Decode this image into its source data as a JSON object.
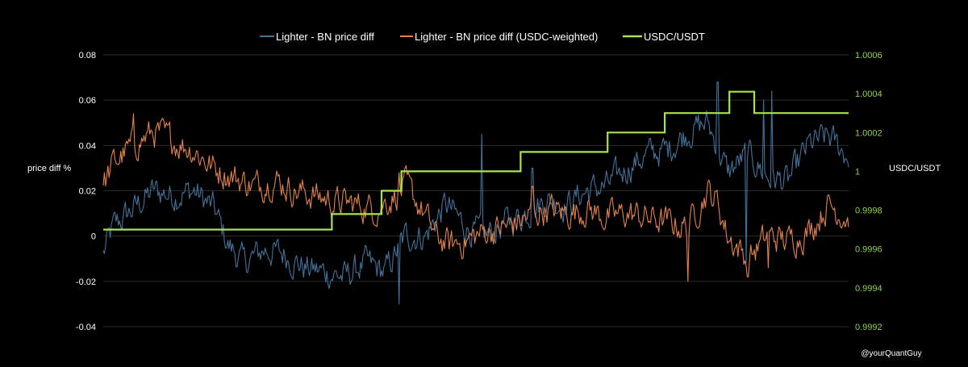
{
  "chart_data": {
    "type": "line",
    "title": "",
    "xlabel": "",
    "ylabel": "price diff %",
    "y2label": "USDC/USDT",
    "ylim": [
      -0.04,
      0.08
    ],
    "y2lim": [
      0.9992,
      1.0006
    ],
    "yticks": [
      "0.08",
      "0.06",
      "0.04",
      "0.02",
      "0",
      "-0.02",
      "-0.04"
    ],
    "y2ticks": [
      "1.0006",
      "1.0004",
      "1.0002",
      "1",
      "0.9998",
      "0.9996",
      "0.9994",
      "0.9992"
    ],
    "legend_position": "top",
    "grid": true,
    "n_points": 300,
    "series": [
      {
        "name": "Lighter - BN price diff",
        "color": "#44729a",
        "axis": "left",
        "anchors": [
          [
            0,
            -0.008
          ],
          [
            5,
            0.004
          ],
          [
            15,
            0.012
          ],
          [
            25,
            0.02
          ],
          [
            35,
            0.018
          ],
          [
            45,
            0.02
          ],
          [
            55,
            0.012
          ],
          [
            62,
            -0.004
          ],
          [
            70,
            -0.012
          ],
          [
            80,
            -0.006
          ],
          [
            90,
            -0.008
          ],
          [
            100,
            -0.014
          ],
          [
            110,
            -0.016
          ],
          [
            120,
            -0.018
          ],
          [
            130,
            -0.012
          ],
          [
            140,
            -0.016
          ],
          [
            150,
            0.0
          ],
          [
            160,
            0.0
          ],
          [
            170,
            0.014
          ],
          [
            180,
            0.004
          ],
          [
            190,
            0.0
          ],
          [
            200,
            0.006
          ],
          [
            210,
            0.01
          ],
          [
            220,
            0.016
          ],
          [
            230,
            0.014
          ],
          [
            240,
            0.02
          ],
          [
            250,
            0.022
          ],
          [
            260,
            0.03
          ],
          [
            270,
            0.036
          ],
          [
            280,
            0.038
          ],
          [
            290,
            0.046
          ],
          [
            300,
            0.05
          ],
          [
            310,
            0.028
          ],
          [
            320,
            0.036
          ],
          [
            330,
            0.026
          ],
          [
            340,
            0.024
          ],
          [
            350,
            0.04
          ],
          [
            360,
            0.044
          ],
          [
            370,
            0.035
          ]
        ],
        "spikes": [
          [
            147,
            -0.03
          ],
          [
            188,
            0.045
          ],
          [
            213,
            0.03
          ],
          [
            305,
            0.068
          ],
          [
            328,
            0.06
          ],
          [
            332,
            0.064
          ],
          [
            319,
            -0.012
          ]
        ]
      },
      {
        "name": "Lighter - BN price diff (USDC-weighted)",
        "color": "#e3824b",
        "axis": "left",
        "anchors": [
          [
            0,
            0.022
          ],
          [
            5,
            0.032
          ],
          [
            15,
            0.04
          ],
          [
            25,
            0.046
          ],
          [
            35,
            0.042
          ],
          [
            45,
            0.038
          ],
          [
            55,
            0.03
          ],
          [
            65,
            0.026
          ],
          [
            75,
            0.022
          ],
          [
            85,
            0.025
          ],
          [
            95,
            0.02
          ],
          [
            105,
            0.018
          ],
          [
            115,
            0.015
          ],
          [
            125,
            0.014
          ],
          [
            135,
            0.012
          ],
          [
            145,
            0.018
          ],
          [
            150,
            0.022
          ],
          [
            158,
            0.012
          ],
          [
            165,
            0.0
          ],
          [
            172,
            -0.004
          ],
          [
            180,
            -0.002
          ],
          [
            190,
            0.002
          ],
          [
            200,
            0.004
          ],
          [
            210,
            0.008
          ],
          [
            220,
            0.012
          ],
          [
            230,
            0.01
          ],
          [
            240,
            0.012
          ],
          [
            250,
            0.008
          ],
          [
            260,
            0.01
          ],
          [
            270,
            0.008
          ],
          [
            280,
            0.006
          ],
          [
            290,
            0.004
          ],
          [
            300,
            0.02
          ],
          [
            305,
            0.015
          ],
          [
            310,
            0.0
          ],
          [
            320,
            -0.01
          ],
          [
            330,
            0.0
          ],
          [
            340,
            -0.002
          ],
          [
            350,
            0.002
          ],
          [
            360,
            0.014
          ],
          [
            370,
            0.008
          ]
        ],
        "spikes": [
          [
            147,
            0.028
          ],
          [
            213,
            0.022
          ],
          [
            290,
            -0.02
          ],
          [
            320,
            -0.018
          ],
          [
            330,
            -0.014
          ],
          [
            15,
            0.054
          ]
        ]
      },
      {
        "name": "USDC/USDT",
        "color": "#a9e34b",
        "axis": "right",
        "steps": [
          [
            0,
            0.9997
          ],
          [
            92,
            0.9997
          ],
          [
            92,
            0.99978
          ],
          [
            112,
            0.99978
          ],
          [
            112,
            0.9999
          ],
          [
            120,
            0.9999
          ],
          [
            120,
            1.0
          ],
          [
            168,
            1.0
          ],
          [
            168,
            1.0001
          ],
          [
            203,
            1.0001
          ],
          [
            203,
            1.0002
          ],
          [
            226,
            1.0002
          ],
          [
            226,
            1.0003
          ],
          [
            252,
            1.0003
          ],
          [
            252,
            1.00041
          ],
          [
            262,
            1.00041
          ],
          [
            262,
            1.0003
          ],
          [
            300,
            1.0003
          ]
        ]
      }
    ]
  },
  "watermark": "@yourQuantGuy"
}
